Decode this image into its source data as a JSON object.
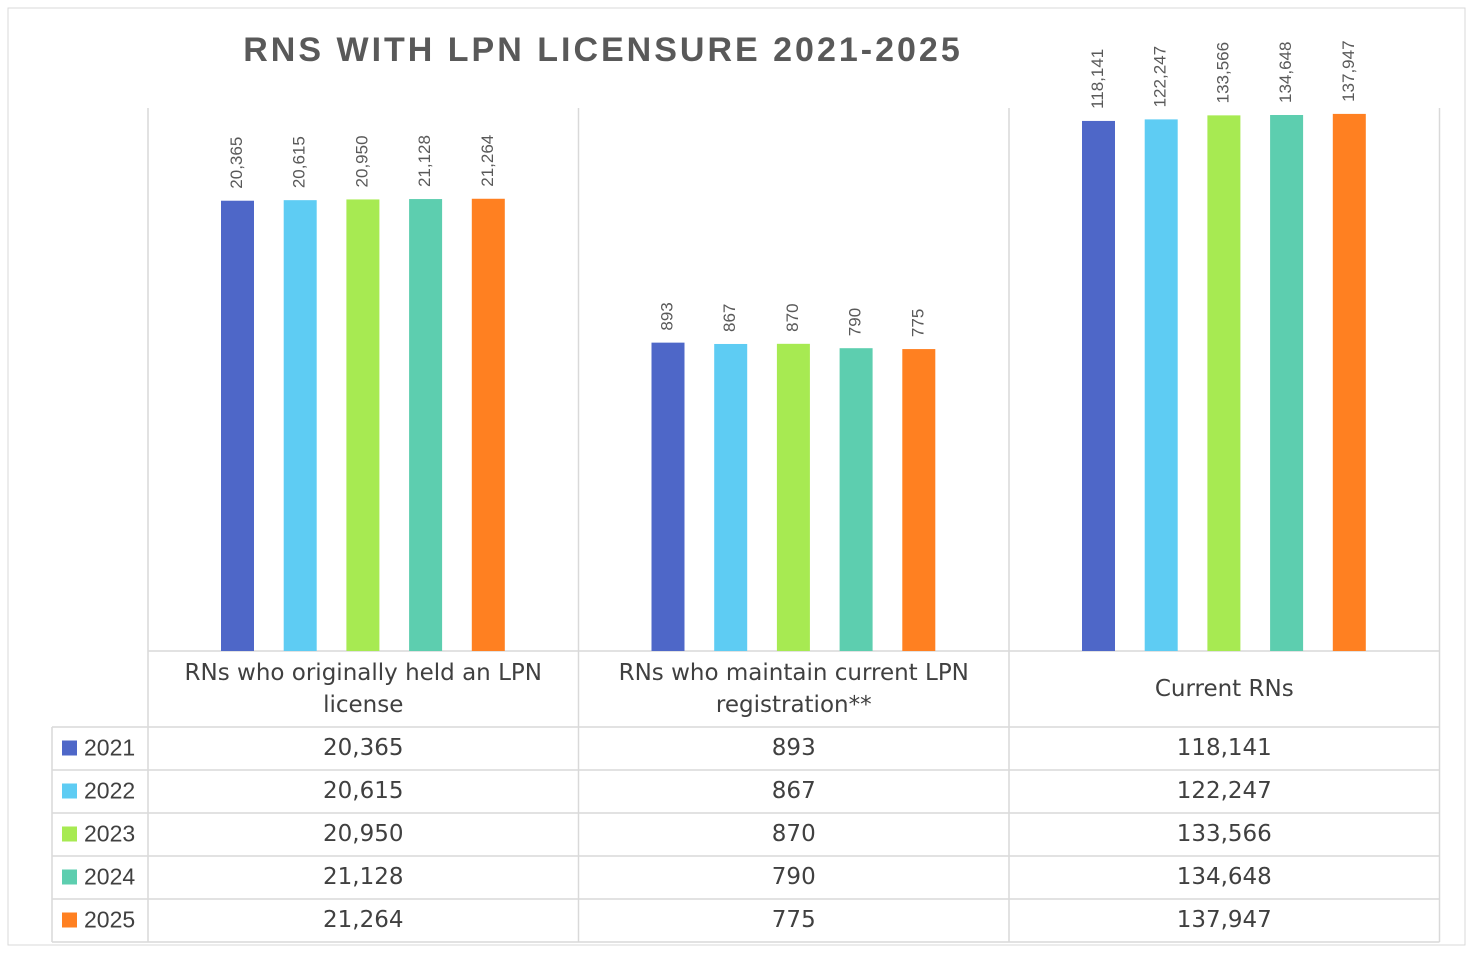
{
  "chart_data": {
    "type": "bar",
    "title": "RNS WITH LPN LICENSURE 2021-2025",
    "categories": [
      "RNs who originally held an LPN license",
      "RNs who maintain current LPN registration**",
      "Current RNs"
    ],
    "series": [
      {
        "name": "2021",
        "color": "#4e67c8",
        "values": [
          20365,
          893,
          118141
        ],
        "value_labels": [
          "20,365",
          "893",
          "118,141"
        ]
      },
      {
        "name": "2022",
        "color": "#5eccf3",
        "values": [
          20615,
          867,
          122247
        ],
        "value_labels": [
          "20,615",
          "867",
          "122,247"
        ]
      },
      {
        "name": "2023",
        "color": "#a7ea52",
        "values": [
          20950,
          870,
          133566
        ],
        "value_labels": [
          "20,950",
          "870",
          "133,566"
        ]
      },
      {
        "name": "2024",
        "color": "#5dceaf",
        "values": [
          21128,
          790,
          134648
        ],
        "value_labels": [
          "21,128",
          "790",
          "134,648"
        ]
      },
      {
        "name": "2025",
        "color": "#ff8021",
        "values": [
          21264,
          775,
          137947
        ],
        "value_labels": [
          "21,264",
          "775",
          "137,947"
        ]
      }
    ],
    "ylim": [
      1,
      1000000
    ],
    "log_scale": true,
    "grid": false,
    "data_table": true
  }
}
